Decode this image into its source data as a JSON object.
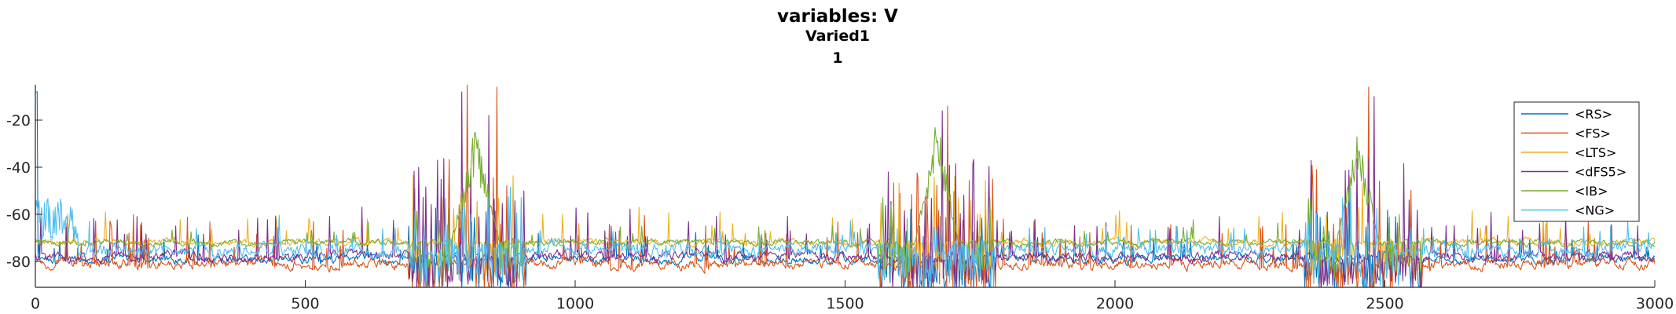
{
  "chart_data": {
    "type": "line",
    "title": "variables: V",
    "subtitle": "Varied1",
    "subtitle2": "1",
    "xlabel": "",
    "ylabel": "",
    "xlim": [
      0,
      3000
    ],
    "ylim": [
      -91,
      -5
    ],
    "x_ticks": [
      0,
      500,
      1000,
      1500,
      2000,
      2500,
      3000
    ],
    "x_tick_labels": [
      "0",
      "500",
      "1000",
      "1500",
      "2000",
      "2500",
      "3000"
    ],
    "y_ticks": [
      -20,
      -40,
      -60,
      -80
    ],
    "y_tick_labels": [
      "-20",
      "-40",
      "-60",
      "-80"
    ],
    "grid": false,
    "legend_position": "top-right",
    "series": [
      {
        "name": "<RS>",
        "color": "#0072BD",
        "base": -79,
        "jitter": 2.5,
        "spike_rate": 0.035,
        "spike_amp": 8
      },
      {
        "name": "<FS>",
        "color": "#D95319",
        "base": -81,
        "jitter": 3.0,
        "spike_rate": 0.05,
        "spike_amp": 14,
        "peaks": [
          {
            "x": 800,
            "y": -5
          },
          {
            "x": 855,
            "y": -6
          },
          {
            "x": 1690,
            "y": -14
          },
          {
            "x": 2470,
            "y": -6
          }
        ]
      },
      {
        "name": "<LTS>",
        "color": "#EDB120",
        "base": -72,
        "jitter": 2.0,
        "spike_rate": 0.03,
        "spike_amp": 10,
        "peaks": [
          {
            "x": 940,
            "y": -60
          },
          {
            "x": 1750,
            "y": -60
          },
          {
            "x": 2560,
            "y": -60
          }
        ]
      },
      {
        "name": "<dFS5>",
        "color": "#7E2F8E",
        "base": -78,
        "jitter": 3.0,
        "spike_rate": 0.05,
        "spike_amp": 14,
        "peaks": [
          {
            "x": 710,
            "y": -40
          },
          {
            "x": 790,
            "y": -8
          },
          {
            "x": 840,
            "y": -18
          },
          {
            "x": 1680,
            "y": -16
          },
          {
            "x": 2480,
            "y": -10
          }
        ]
      },
      {
        "name": "<IB>",
        "color": "#77AC30",
        "base": -72,
        "jitter": 1.8,
        "spike_rate": 0.02,
        "spike_amp": 6,
        "bursts": [
          {
            "center": 815,
            "width": 45,
            "top": -20
          },
          {
            "center": 1670,
            "width": 40,
            "top": -15
          },
          {
            "center": 2450,
            "width": 40,
            "top": -22
          }
        ]
      },
      {
        "name": "<NG>",
        "color": "#4DBEEE",
        "base": -75,
        "jitter": 4.0,
        "spike_rate": 0.03,
        "spike_amp": 8
      }
    ]
  }
}
